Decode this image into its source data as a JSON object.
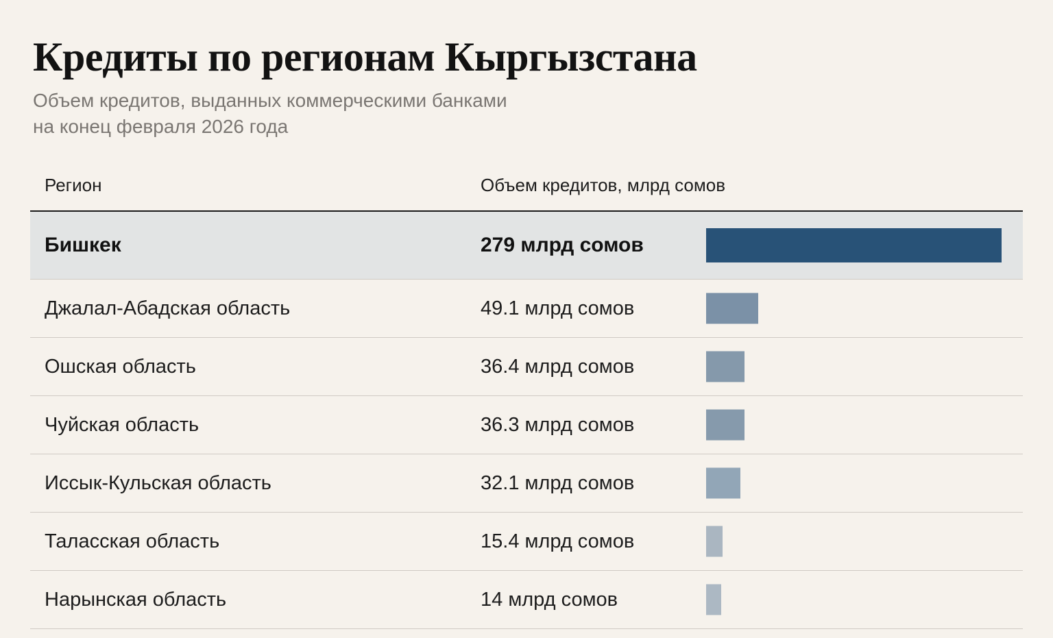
{
  "header": {
    "title": "Кредиты по регионам Кыргызстана",
    "subtitle_line1": "Объем кредитов, выданных коммерческими банками",
    "subtitle_line2": "на конец февраля 2026 года"
  },
  "table": {
    "col_region": "Регион",
    "col_value": "Объем кредитов, млрд сомов"
  },
  "colors": {
    "highlight_bar": "#285277",
    "bar_shades": [
      "#7b91a7",
      "#8599ab",
      "#869aac",
      "#92a6b7",
      "#aab6c1",
      "#acb8c3"
    ]
  },
  "chart_data": {
    "type": "bar",
    "orientation": "horizontal",
    "title": "Кредиты по регионам Кыргызстана",
    "subtitle": "Объем кредитов, выданных коммерческими банками на конец февраля 2026 года",
    "xlabel": "Объем кредитов, млрд сомов",
    "unit": "млрд сомов",
    "highlight": "Бишкек",
    "categories": [
      "Бишкек",
      "Джалал-Абадская область",
      "Ошская область",
      "Чуйская область",
      "Иссык-Кульская область",
      "Таласская область",
      "Нарынская область"
    ],
    "values": [
      279,
      49.1,
      36.4,
      36.3,
      32.1,
      15.4,
      14
    ],
    "value_labels": [
      "279 млрд сомов",
      "49.1 млрд сомов",
      "36.4 млрд сомов",
      "36.3 млрд сомов",
      "32.1 млрд сомов",
      "15.4 млрд сомов",
      "14 млрд сомов"
    ],
    "xlim": [
      0,
      279
    ]
  }
}
